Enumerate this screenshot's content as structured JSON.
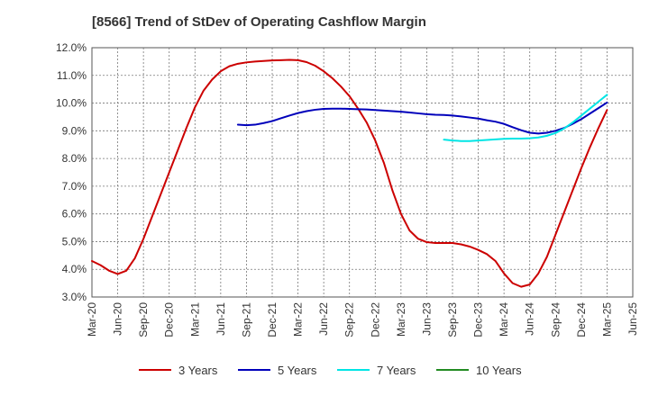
{
  "chart_data": {
    "type": "line",
    "title": "[8566]  Trend of StDev of Operating Cashflow Margin",
    "xlabel": "",
    "ylabel": "",
    "ylim": [
      3.0,
      12.0
    ],
    "y_ticks": [
      "3.0%",
      "4.0%",
      "5.0%",
      "6.0%",
      "7.0%",
      "8.0%",
      "9.0%",
      "10.0%",
      "11.0%",
      "12.0%"
    ],
    "x_range": [
      "2020-03",
      "2025-06"
    ],
    "x_ticks": [
      "Mar-20",
      "Jun-20",
      "Sep-20",
      "Dec-20",
      "Mar-21",
      "Jun-21",
      "Sep-21",
      "Dec-21",
      "Mar-22",
      "Jun-22",
      "Sep-22",
      "Dec-22",
      "Mar-23",
      "Jun-23",
      "Sep-23",
      "Dec-23",
      "Mar-24",
      "Jun-24",
      "Sep-24",
      "Dec-24",
      "Mar-25",
      "Jun-25"
    ],
    "grid": true,
    "legend_position": "bottom",
    "series": [
      {
        "name": "3 Years",
        "color": "#cc0000",
        "points": [
          [
            "2020-03",
            4.3
          ],
          [
            "2020-04",
            4.15
          ],
          [
            "2020-05",
            3.95
          ],
          [
            "2020-06",
            3.83
          ],
          [
            "2020-07",
            3.95
          ],
          [
            "2020-08",
            4.4
          ],
          [
            "2020-09",
            5.1
          ],
          [
            "2020-10",
            5.9
          ],
          [
            "2020-11",
            6.7
          ],
          [
            "2020-12",
            7.5
          ],
          [
            "2021-01",
            8.3
          ],
          [
            "2021-02",
            9.1
          ],
          [
            "2021-03",
            9.85
          ],
          [
            "2021-04",
            10.45
          ],
          [
            "2021-05",
            10.85
          ],
          [
            "2021-06",
            11.15
          ],
          [
            "2021-07",
            11.33
          ],
          [
            "2021-08",
            11.42
          ],
          [
            "2021-09",
            11.47
          ],
          [
            "2021-10",
            11.5
          ],
          [
            "2021-11",
            11.52
          ],
          [
            "2021-12",
            11.54
          ],
          [
            "2022-01",
            11.55
          ],
          [
            "2022-02",
            11.56
          ],
          [
            "2022-03",
            11.55
          ],
          [
            "2022-04",
            11.48
          ],
          [
            "2022-05",
            11.35
          ],
          [
            "2022-06",
            11.15
          ],
          [
            "2022-07",
            10.9
          ],
          [
            "2022-08",
            10.6
          ],
          [
            "2022-09",
            10.25
          ],
          [
            "2022-10",
            9.8
          ],
          [
            "2022-11",
            9.3
          ],
          [
            "2022-12",
            8.65
          ],
          [
            "2023-01",
            7.85
          ],
          [
            "2023-02",
            6.85
          ],
          [
            "2023-03",
            6.0
          ],
          [
            "2023-04",
            5.4
          ],
          [
            "2023-05",
            5.1
          ],
          [
            "2023-06",
            4.98
          ],
          [
            "2023-07",
            4.95
          ],
          [
            "2023-08",
            4.95
          ],
          [
            "2023-09",
            4.95
          ],
          [
            "2023-10",
            4.9
          ],
          [
            "2023-11",
            4.82
          ],
          [
            "2023-12",
            4.7
          ],
          [
            "2024-01",
            4.55
          ],
          [
            "2024-02",
            4.3
          ],
          [
            "2024-03",
            3.85
          ],
          [
            "2024-04",
            3.5
          ],
          [
            "2024-05",
            3.37
          ],
          [
            "2024-06",
            3.45
          ],
          [
            "2024-07",
            3.85
          ],
          [
            "2024-08",
            4.45
          ],
          [
            "2024-09",
            5.25
          ],
          [
            "2024-10",
            6.05
          ],
          [
            "2024-11",
            6.85
          ],
          [
            "2024-12",
            7.65
          ],
          [
            "2025-01",
            8.4
          ],
          [
            "2025-02",
            9.1
          ],
          [
            "2025-03",
            9.75
          ]
        ]
      },
      {
        "name": "5 Years",
        "color": "#0000bb",
        "points": [
          [
            "2021-08",
            9.22
          ],
          [
            "2021-09",
            9.2
          ],
          [
            "2021-10",
            9.22
          ],
          [
            "2021-11",
            9.28
          ],
          [
            "2021-12",
            9.35
          ],
          [
            "2022-01",
            9.45
          ],
          [
            "2022-02",
            9.55
          ],
          [
            "2022-03",
            9.64
          ],
          [
            "2022-04",
            9.71
          ],
          [
            "2022-05",
            9.76
          ],
          [
            "2022-06",
            9.79
          ],
          [
            "2022-07",
            9.8
          ],
          [
            "2022-08",
            9.8
          ],
          [
            "2022-09",
            9.79
          ],
          [
            "2022-10",
            9.78
          ],
          [
            "2022-11",
            9.77
          ],
          [
            "2022-12",
            9.75
          ],
          [
            "2023-01",
            9.73
          ],
          [
            "2023-02",
            9.71
          ],
          [
            "2023-03",
            9.69
          ],
          [
            "2023-04",
            9.66
          ],
          [
            "2023-05",
            9.63
          ],
          [
            "2023-06",
            9.6
          ],
          [
            "2023-07",
            9.58
          ],
          [
            "2023-08",
            9.57
          ],
          [
            "2023-09",
            9.55
          ],
          [
            "2023-10",
            9.52
          ],
          [
            "2023-11",
            9.48
          ],
          [
            "2023-12",
            9.44
          ],
          [
            "2024-01",
            9.38
          ],
          [
            "2024-02",
            9.33
          ],
          [
            "2024-03",
            9.25
          ],
          [
            "2024-04",
            9.13
          ],
          [
            "2024-05",
            9.02
          ],
          [
            "2024-06",
            8.93
          ],
          [
            "2024-07",
            8.9
          ],
          [
            "2024-08",
            8.93
          ],
          [
            "2024-09",
            9.0
          ],
          [
            "2024-10",
            9.1
          ],
          [
            "2024-11",
            9.25
          ],
          [
            "2024-12",
            9.42
          ],
          [
            "2025-01",
            9.62
          ],
          [
            "2025-02",
            9.82
          ],
          [
            "2025-03",
            10.02
          ]
        ]
      },
      {
        "name": "7 Years",
        "color": "#00e5e5",
        "points": [
          [
            "2023-08",
            8.68
          ],
          [
            "2023-09",
            8.65
          ],
          [
            "2023-10",
            8.63
          ],
          [
            "2023-11",
            8.63
          ],
          [
            "2023-12",
            8.65
          ],
          [
            "2024-01",
            8.67
          ],
          [
            "2024-02",
            8.69
          ],
          [
            "2024-03",
            8.71
          ],
          [
            "2024-04",
            8.72
          ],
          [
            "2024-05",
            8.72
          ],
          [
            "2024-06",
            8.73
          ],
          [
            "2024-07",
            8.76
          ],
          [
            "2024-08",
            8.82
          ],
          [
            "2024-09",
            8.92
          ],
          [
            "2024-10",
            9.08
          ],
          [
            "2024-11",
            9.3
          ],
          [
            "2024-12",
            9.55
          ],
          [
            "2025-01",
            9.8
          ],
          [
            "2025-02",
            10.05
          ],
          [
            "2025-03",
            10.3
          ]
        ]
      },
      {
        "name": "10 Years",
        "color": "#228b22",
        "points": []
      }
    ]
  }
}
